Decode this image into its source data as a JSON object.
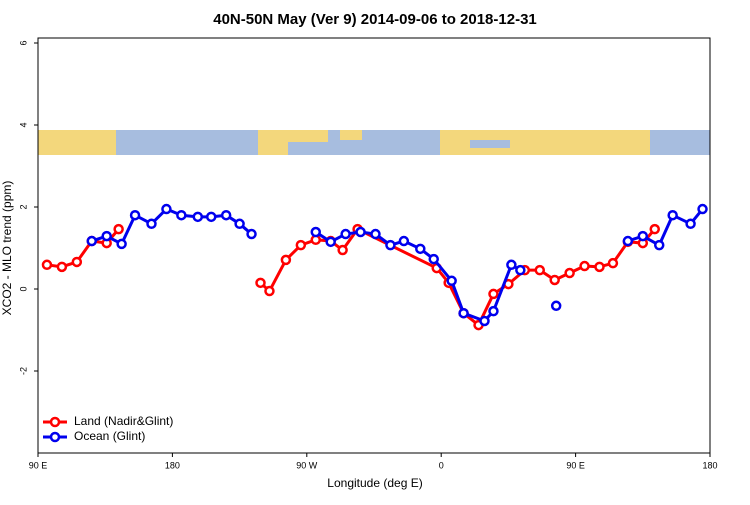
{
  "chart_data": {
    "type": "line",
    "title": "40N-50N May (Ver 9)   2014-09-06 to 2018-12-31",
    "x_label": "Longitude (deg E)",
    "y_label": "XCO2 - MLO trend (ppm)",
    "xlim": [
      90,
      540
    ],
    "xticks": [
      {
        "value": 90,
        "label": "90 E"
      },
      {
        "value": 180,
        "label": "180"
      },
      {
        "value": 270,
        "label": "90 W"
      },
      {
        "value": 360,
        "label": "0"
      },
      {
        "value": 450,
        "label": "90 E"
      },
      {
        "value": 540,
        "label": "180"
      }
    ],
    "ylim": [
      -4,
      6
    ],
    "yticks": [
      -2,
      0,
      2,
      4,
      6
    ],
    "legend": "bottom-left",
    "series": [
      {
        "name": "Land (Nadir&Glint)",
        "color": "#ff0000",
        "x": [
          96,
          106,
          116,
          126,
          136,
          144,
          null,
          239,
          245,
          256,
          266,
          276,
          286,
          294,
          304,
          357,
          365,
          375,
          385,
          395,
          405,
          416,
          426,
          436,
          446,
          456,
          466,
          475,
          485,
          495,
          503
        ],
        "values": [
          0.59,
          0.54,
          0.66,
          1.17,
          1.12,
          1.46,
          null,
          0.15,
          -0.05,
          0.71,
          1.07,
          1.2,
          1.17,
          0.95,
          1.46,
          0.51,
          0.15,
          -0.59,
          -0.88,
          -0.12,
          0.12,
          0.46,
          0.46,
          0.22,
          0.39,
          0.56,
          0.54,
          0.63,
          1.15,
          1.12,
          1.46
        ]
      },
      {
        "name": "Ocean (Glint)",
        "color": "#0000ee",
        "x": [
          126,
          136,
          146,
          155,
          166,
          176,
          186,
          197,
          206,
          216,
          225,
          233,
          null,
          276,
          286,
          296,
          306,
          316,
          326,
          335,
          346,
          355,
          367,
          375,
          389,
          395,
          407,
          413,
          null,
          437,
          null,
          485,
          495,
          506,
          515,
          527,
          535
        ],
        "values": [
          1.17,
          1.29,
          1.1,
          1.8,
          1.59,
          1.95,
          1.8,
          1.76,
          1.76,
          1.8,
          1.59,
          1.34,
          null,
          1.39,
          1.15,
          1.34,
          1.39,
          1.34,
          1.07,
          1.17,
          0.98,
          0.73,
          0.2,
          -0.59,
          -0.78,
          -0.54,
          0.59,
          0.46,
          null,
          -0.41,
          null,
          1.17,
          1.29,
          1.07,
          1.8,
          1.59,
          1.95
        ]
      }
    ]
  }
}
